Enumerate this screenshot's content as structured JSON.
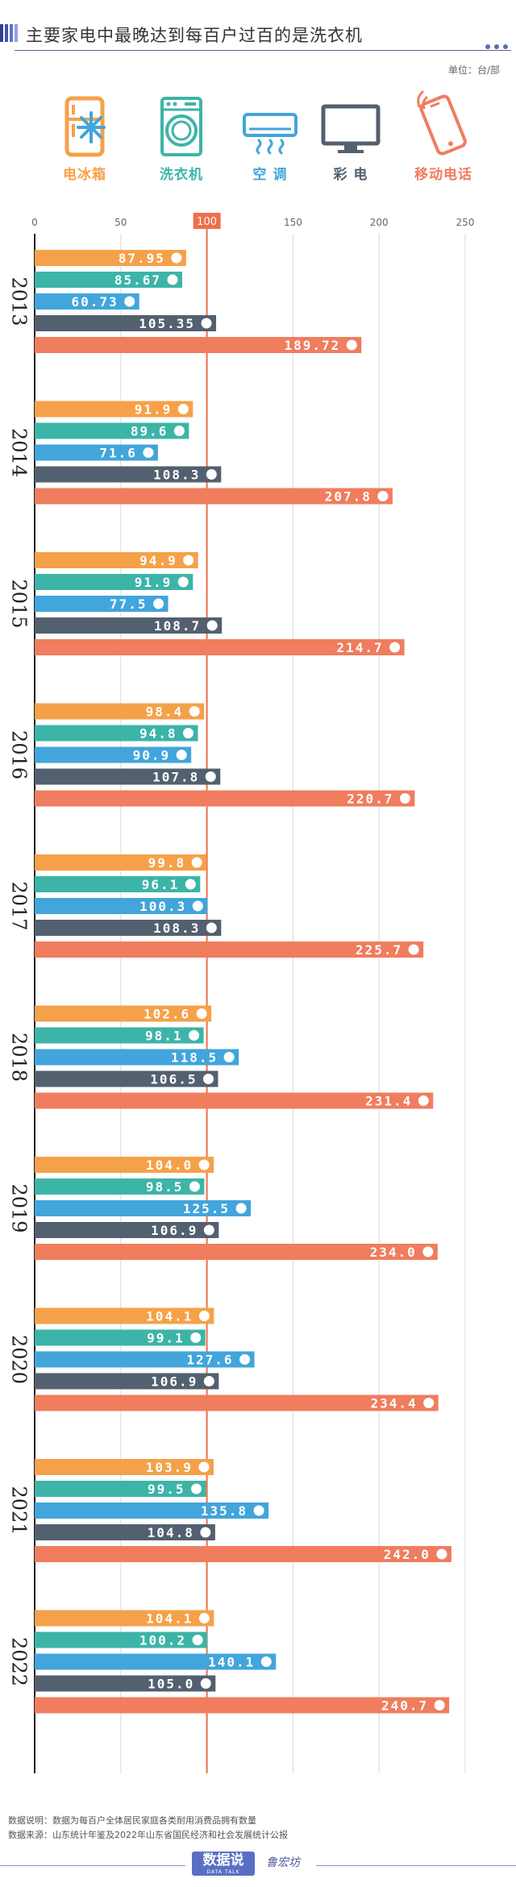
{
  "title": "主要家电中最晚达到每百户过百的是洗衣机",
  "unit": "单位：台/部",
  "legend": [
    {
      "key": "fridge",
      "label": "电冰箱",
      "color": "#f5a14a",
      "icon": "fridge-icon"
    },
    {
      "key": "washer",
      "label": "洗衣机",
      "color": "#3db4a8",
      "icon": "washing-machine-icon"
    },
    {
      "key": "ac",
      "label": "空 调",
      "color": "#42a5db",
      "icon": "air-conditioner-icon"
    },
    {
      "key": "tv",
      "label": "彩 电",
      "color": "#53606f",
      "icon": "tv-icon"
    },
    {
      "key": "phone",
      "label": "移动电话",
      "color": "#ef7d5e",
      "icon": "mobile-phone-icon"
    }
  ],
  "chart_data": {
    "type": "bar",
    "orientation": "horizontal",
    "categories": [
      "2013",
      "2014",
      "2015",
      "2016",
      "2017",
      "2018",
      "2019",
      "2020",
      "2021",
      "2022"
    ],
    "x_ticks": [
      "0",
      "50",
      "100",
      "150",
      "200",
      "250"
    ],
    "xlim": [
      0,
      250
    ],
    "reference_line": {
      "value": 100,
      "label": "100",
      "color": "#ee6f4a"
    },
    "series": [
      {
        "name": "电冰箱",
        "color": "#f5a14a",
        "values": [
          87.95,
          91.9,
          94.9,
          98.4,
          99.8,
          102.6,
          104.0,
          104.1,
          103.9,
          104.1
        ],
        "labels": [
          "87.95",
          "91.9",
          "94.9",
          "98.4",
          "99.8",
          "102.6",
          "104.0",
          "104.1",
          "103.9",
          "104.1"
        ]
      },
      {
        "name": "洗衣机",
        "color": "#3db4a8",
        "values": [
          85.67,
          89.6,
          91.9,
          94.8,
          96.1,
          98.1,
          98.5,
          99.1,
          99.5,
          100.2
        ],
        "labels": [
          "85.67",
          "89.6",
          "91.9",
          "94.8",
          "96.1",
          "98.1",
          "98.5",
          "99.1",
          "99.5",
          "100.2"
        ]
      },
      {
        "name": "空 调",
        "color": "#42a5db",
        "values": [
          60.73,
          71.6,
          77.5,
          90.9,
          100.3,
          118.5,
          125.5,
          127.6,
          135.8,
          140.1
        ],
        "labels": [
          "60.73",
          "71.6",
          "77.5",
          "90.9",
          "100.3",
          "118.5",
          "125.5",
          "127.6",
          "135.8",
          "140.1"
        ]
      },
      {
        "name": "彩 电",
        "color": "#53606f",
        "values": [
          105.35,
          108.3,
          108.7,
          107.8,
          108.3,
          106.5,
          106.9,
          106.9,
          104.8,
          105.0
        ],
        "labels": [
          "105.35",
          "108.3",
          "108.7",
          "107.8",
          "108.3",
          "106.5",
          "106.9",
          "106.9",
          "104.8",
          "105.0"
        ]
      },
      {
        "name": "移动电话",
        "color": "#ef7d5e",
        "values": [
          189.72,
          207.8,
          214.7,
          220.7,
          225.7,
          231.4,
          234.0,
          234.4,
          242.0,
          240.7
        ],
        "labels": [
          "189.72",
          "207.8",
          "214.7",
          "220.7",
          "225.7",
          "231.4",
          "234.0",
          "234.4",
          "242.0",
          "240.7"
        ]
      }
    ]
  },
  "footer": {
    "note": "数据说明：数据为每百户全体居民家庭各类耐用消费品拥有数量",
    "source": "数据来源：山东统计年鉴及2022年山东省国民经济和社会发展统计公报",
    "logo_main": "数据说",
    "logo_sub": "DATA TALK",
    "logo2": "鲁宏坊"
  }
}
